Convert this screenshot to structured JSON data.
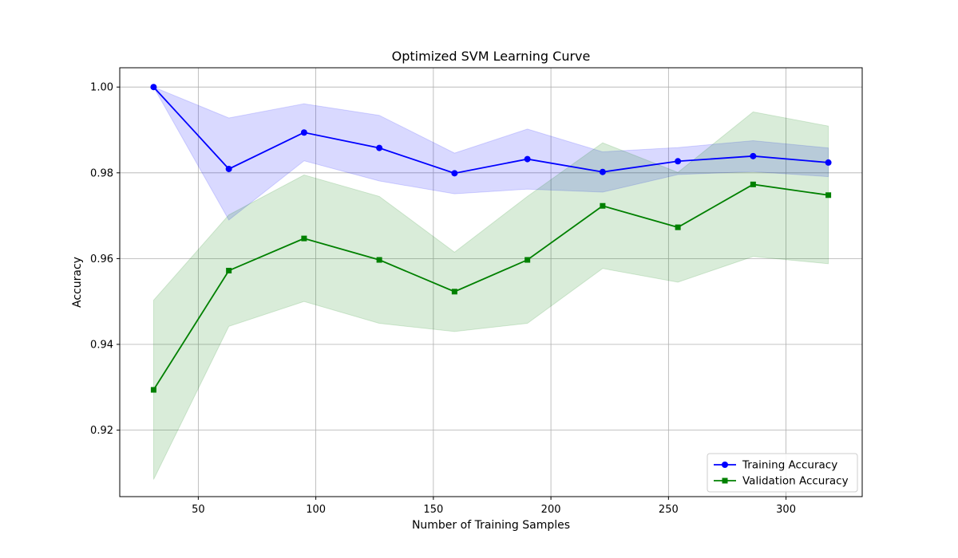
{
  "chart_data": {
    "type": "line",
    "title": "Optimized SVM Learning Curve",
    "xlabel": "Number of Training Samples",
    "ylabel": "Accuracy",
    "xlim": [
      16.6,
      332.4
    ],
    "ylim": [
      0.9045,
      1.0045
    ],
    "xticks": [
      50,
      100,
      150,
      200,
      250,
      300
    ],
    "xtick_labels": [
      "50",
      "100",
      "150",
      "200",
      "250",
      "300"
    ],
    "yticks": [
      0.92,
      0.94,
      0.96,
      0.98,
      1.0
    ],
    "ytick_labels": [
      "0.92",
      "0.94",
      "0.96",
      "0.98",
      "1.00"
    ],
    "grid": true,
    "legend_position": "lower-right",
    "x": [
      31,
      63,
      95,
      127,
      159,
      190,
      222,
      254,
      286,
      318
    ],
    "series": [
      {
        "name": "Training Accuracy",
        "color": "#0000ff",
        "band_color": "#0000ff",
        "marker": "circle",
        "values": [
          1.0,
          0.9809,
          0.9894,
          0.9858,
          0.9799,
          0.9832,
          0.9802,
          0.9827,
          0.9839,
          0.9824
        ],
        "band_upper": [
          1.0,
          0.9928,
          0.9961,
          0.9934,
          0.9846,
          0.9902,
          0.9849,
          0.9859,
          0.9875,
          0.9858
        ],
        "band_lower": [
          1.0,
          0.969,
          0.9828,
          0.9781,
          0.9751,
          0.9762,
          0.9755,
          0.9796,
          0.9803,
          0.9791
        ]
      },
      {
        "name": "Validation Accuracy",
        "color": "#008000",
        "band_color": "#008000",
        "marker": "square",
        "values": [
          0.9294,
          0.9572,
          0.9647,
          0.9597,
          0.9523,
          0.9597,
          0.9723,
          0.9673,
          0.9773,
          0.9748
        ],
        "band_upper": [
          0.9503,
          0.9702,
          0.9795,
          0.9745,
          0.9615,
          0.9745,
          0.987,
          0.9801,
          0.9942,
          0.9909
        ],
        "band_lower": [
          0.9085,
          0.9442,
          0.95,
          0.9449,
          0.943,
          0.9449,
          0.9577,
          0.9545,
          0.9605,
          0.9588
        ]
      }
    ]
  }
}
